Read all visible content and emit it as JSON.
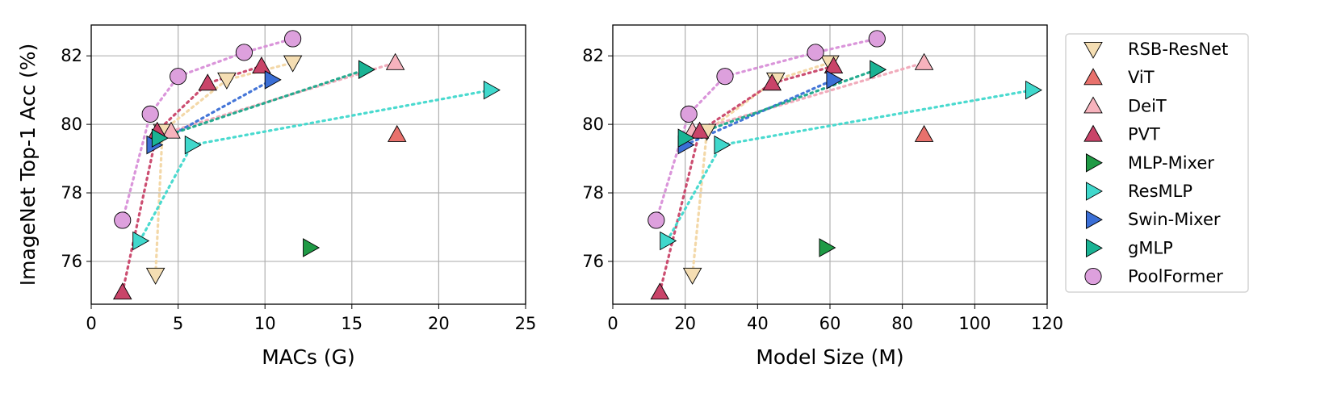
{
  "chart_data": [
    {
      "type": "scatter",
      "title": "",
      "xlabel": "MACs (G)",
      "ylabel": "ImageNet Top-1 Acc (%)",
      "xlim": [
        0,
        25
      ],
      "ylim": [
        74.75,
        82.9
      ],
      "xticks": [
        0,
        5,
        10,
        15,
        20,
        25
      ],
      "yticks": [
        76,
        78,
        80,
        82
      ],
      "grid": true,
      "series": [
        {
          "name": "RSB-ResNet",
          "marker": "triangle-down",
          "color": "#f5deb3",
          "line": "#f2d6a3",
          "connected": true,
          "points": [
            [
              3.7,
              75.6
            ],
            [
              4.1,
              79.8
            ],
            [
              7.8,
              81.3
            ],
            [
              11.6,
              81.8
            ]
          ]
        },
        {
          "name": "ViT",
          "marker": "triangle-up",
          "color": "#e8716c",
          "line": null,
          "connected": false,
          "points": [
            [
              17.6,
              79.7
            ]
          ]
        },
        {
          "name": "DeiT",
          "marker": "triangle-up",
          "color": "#f7b3bd",
          "line": "#f0a8b8",
          "connected": true,
          "points": [
            [
              4.6,
              79.8
            ],
            [
              17.5,
              81.8
            ]
          ]
        },
        {
          "name": "PVT",
          "marker": "triangle-up",
          "color": "#c94469",
          "line": "#c94469",
          "connected": true,
          "points": [
            [
              1.8,
              75.1
            ],
            [
              3.8,
              79.8
            ],
            [
              6.7,
              81.2
            ],
            [
              9.8,
              81.7
            ]
          ]
        },
        {
          "name": "MLP-Mixer",
          "marker": "triangle-right",
          "color": "#1f9a45",
          "line": null,
          "connected": false,
          "points": [
            [
              12.6,
              76.4
            ]
          ]
        },
        {
          "name": "ResMLP",
          "marker": "triangle-right",
          "color": "#40d8cc",
          "line": "#40d8cc",
          "connected": true,
          "points": [
            [
              2.8,
              76.6
            ],
            [
              5.8,
              79.4
            ],
            [
              23.0,
              81.0
            ]
          ]
        },
        {
          "name": "Swin-Mixer",
          "marker": "triangle-right",
          "color": "#3b6fd6",
          "line": "#3b6fd6",
          "connected": true,
          "points": [
            [
              3.6,
              79.4
            ],
            [
              10.4,
              81.3
            ]
          ]
        },
        {
          "name": "gMLP",
          "marker": "triangle-right",
          "color": "#1ab394",
          "line": "#1aa88a",
          "connected": true,
          "points": [
            [
              3.9,
              79.6
            ],
            [
              15.8,
              81.6
            ]
          ]
        },
        {
          "name": "PoolFormer",
          "marker": "circle",
          "color": "#dda0dd",
          "line": "#d88fd8",
          "connected": true,
          "points": [
            [
              1.8,
              77.2
            ],
            [
              3.4,
              80.3
            ],
            [
              5.0,
              81.4
            ],
            [
              8.8,
              82.1
            ],
            [
              11.6,
              82.5
            ]
          ]
        }
      ]
    },
    {
      "type": "scatter",
      "title": "",
      "xlabel": "Model Size (M)",
      "ylabel": "",
      "xlim": [
        0,
        120
      ],
      "ylim": [
        74.75,
        82.9
      ],
      "xticks": [
        0,
        20,
        40,
        60,
        80,
        100,
        120
      ],
      "yticks": [
        76,
        78,
        80,
        82
      ],
      "grid": true,
      "series": [
        {
          "name": "RSB-ResNet",
          "marker": "triangle-down",
          "color": "#f5deb3",
          "line": "#f2d6a3",
          "connected": true,
          "points": [
            [
              22,
              75.6
            ],
            [
              26,
              79.8
            ],
            [
              45,
              81.3
            ],
            [
              60,
              81.8
            ]
          ]
        },
        {
          "name": "ViT",
          "marker": "triangle-up",
          "color": "#e8716c",
          "line": null,
          "connected": false,
          "points": [
            [
              86,
              79.7
            ]
          ]
        },
        {
          "name": "DeiT",
          "marker": "triangle-up",
          "color": "#f7b3bd",
          "line": "#f0a8b8",
          "connected": true,
          "points": [
            [
              22,
              79.8
            ],
            [
              86,
              81.8
            ]
          ]
        },
        {
          "name": "PVT",
          "marker": "triangle-up",
          "color": "#c94469",
          "line": "#c94469",
          "connected": true,
          "points": [
            [
              13,
              75.1
            ],
            [
              24,
              79.8
            ],
            [
              44,
              81.2
            ],
            [
              61,
              81.7
            ]
          ]
        },
        {
          "name": "MLP-Mixer",
          "marker": "triangle-right",
          "color": "#1f9a45",
          "line": null,
          "connected": false,
          "points": [
            [
              59,
              76.4
            ]
          ]
        },
        {
          "name": "ResMLP",
          "marker": "triangle-right",
          "color": "#40d8cc",
          "line": "#40d8cc",
          "connected": true,
          "points": [
            [
              15,
              76.6
            ],
            [
              30,
              79.4
            ],
            [
              116,
              81.0
            ]
          ]
        },
        {
          "name": "Swin-Mixer",
          "marker": "triangle-right",
          "color": "#3b6fd6",
          "line": "#3b6fd6",
          "connected": true,
          "points": [
            [
              20,
              79.4
            ],
            [
              61,
              81.3
            ]
          ]
        },
        {
          "name": "gMLP",
          "marker": "triangle-right",
          "color": "#1ab394",
          "line": "#1aa88a",
          "connected": true,
          "points": [
            [
              20,
              79.6
            ],
            [
              73,
              81.6
            ]
          ]
        },
        {
          "name": "PoolFormer",
          "marker": "circle",
          "color": "#dda0dd",
          "line": "#d88fd8",
          "connected": true,
          "points": [
            [
              12,
              77.2
            ],
            [
              21,
              80.3
            ],
            [
              31,
              81.4
            ],
            [
              56,
              82.1
            ],
            [
              73,
              82.5
            ]
          ]
        }
      ]
    }
  ],
  "legend": {
    "placement": "right",
    "entries": [
      "RSB-ResNet",
      "ViT",
      "DeiT",
      "PVT",
      "MLP-Mixer",
      "ResMLP",
      "Swin-Mixer",
      "gMLP",
      "PoolFormer"
    ]
  }
}
